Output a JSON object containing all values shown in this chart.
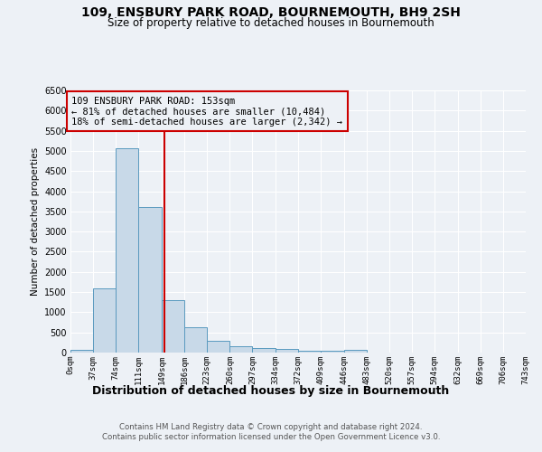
{
  "title": "109, ENSBURY PARK ROAD, BOURNEMOUTH, BH9 2SH",
  "subtitle": "Size of property relative to detached houses in Bournemouth",
  "xlabel": "Distribution of detached houses by size in Bournemouth",
  "ylabel": "Number of detached properties",
  "bar_edges": [
    0,
    37,
    74,
    111,
    149,
    186,
    223,
    260,
    297,
    334,
    372,
    409,
    446,
    483,
    520,
    557,
    594,
    632,
    669,
    706,
    743
  ],
  "bar_heights": [
    75,
    1600,
    5060,
    3600,
    1300,
    620,
    300,
    155,
    120,
    80,
    50,
    40,
    60,
    0,
    0,
    0,
    0,
    0,
    0,
    0
  ],
  "bar_color": "#c8d9e8",
  "bar_edge_color": "#5a9abf",
  "property_size": 153,
  "vline_color": "#cc0000",
  "annotation_text": "109 ENSBURY PARK ROAD: 153sqm\n← 81% of detached houses are smaller (10,484)\n18% of semi-detached houses are larger (2,342) →",
  "annotation_box_color": "#cc0000",
  "ylim": [
    0,
    6500
  ],
  "yticks": [
    0,
    500,
    1000,
    1500,
    2000,
    2500,
    3000,
    3500,
    4000,
    4500,
    5000,
    5500,
    6000,
    6500
  ],
  "tick_labels": [
    "0sqm",
    "37sqm",
    "74sqm",
    "111sqm",
    "149sqm",
    "186sqm",
    "223sqm",
    "260sqm",
    "297sqm",
    "334sqm",
    "372sqm",
    "409sqm",
    "446sqm",
    "483sqm",
    "520sqm",
    "557sqm",
    "594sqm",
    "632sqm",
    "669sqm",
    "706sqm",
    "743sqm"
  ],
  "footnote": "Contains HM Land Registry data © Crown copyright and database right 2024.\nContains public sector information licensed under the Open Government Licence v3.0.",
  "bg_color": "#edf1f6",
  "grid_color": "#ffffff"
}
